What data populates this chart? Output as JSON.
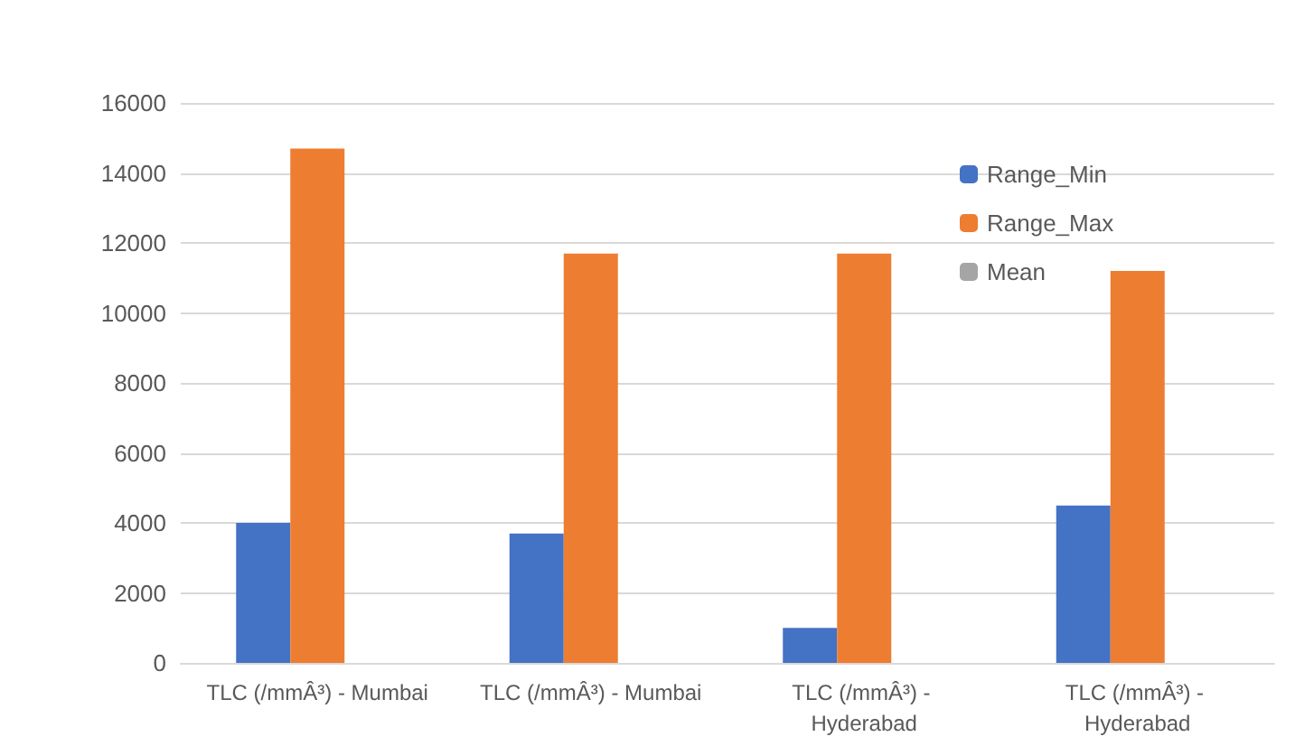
{
  "chart_data": {
    "type": "bar",
    "categories": [
      "TLC (/mmÂ³) - Mumbai",
      "TLC (/mmÂ³) - Mumbai",
      "TLC (/mmÂ³) - Hyderabad",
      "TLC (/mmÂ³) - Hyderabad"
    ],
    "series": [
      {
        "name": "Range_Min",
        "color": "#4472c4",
        "values": [
          4000,
          3700,
          1000,
          4500
        ]
      },
      {
        "name": "Range_Max",
        "color": "#ed7d31",
        "values": [
          14700,
          11700,
          11700,
          11200
        ]
      },
      {
        "name": "Mean",
        "color": "#a5a5a5",
        "values": [
          null,
          null,
          null,
          null
        ]
      }
    ],
    "ylim": [
      0,
      16000
    ],
    "yticks": [
      0,
      2000,
      4000,
      6000,
      8000,
      10000,
      12000,
      14000,
      16000
    ],
    "grid": "y",
    "legend": "top right"
  }
}
